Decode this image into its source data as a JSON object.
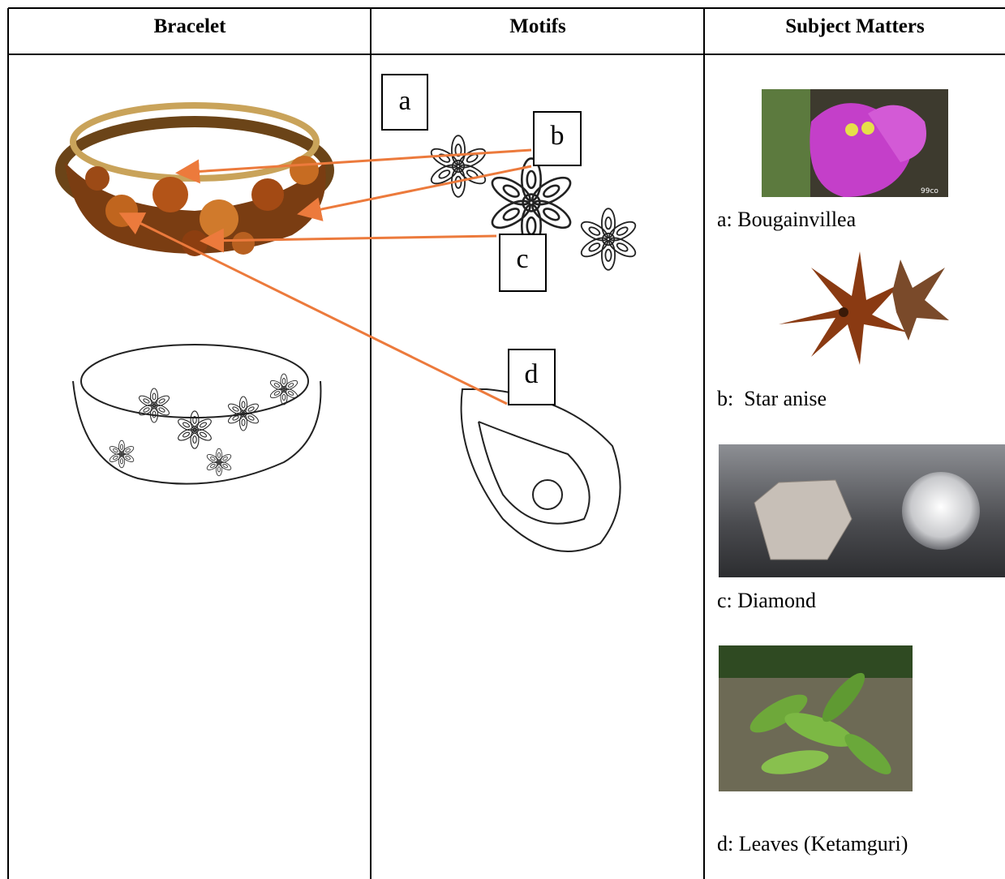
{
  "table": {
    "headers": [
      "Bracelet",
      "Motifs",
      "Subject Matters"
    ]
  },
  "motif_labels": [
    "a",
    "b",
    "c",
    "d"
  ],
  "subject_matters": [
    "a: Bougainvillea",
    "b:  Star anise",
    "c: Diamond",
    "d: Leaves (Ketamguri)"
  ],
  "watermark": "99co"
}
